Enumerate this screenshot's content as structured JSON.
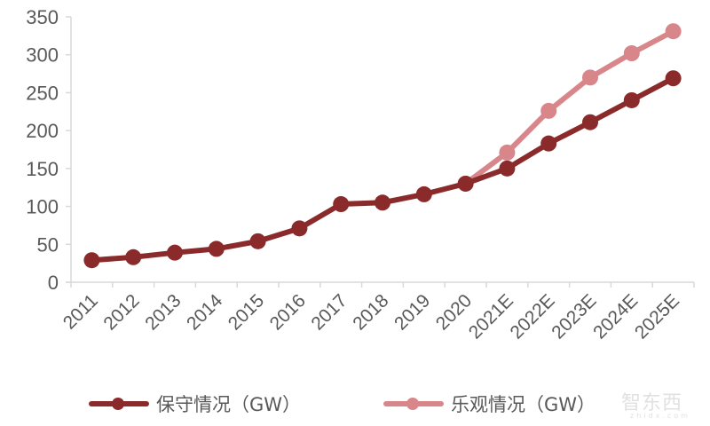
{
  "chart_data": {
    "type": "line",
    "title": "",
    "xlabel": "",
    "ylabel": "",
    "ylim": [
      0,
      350
    ],
    "yticks": [
      0,
      50,
      100,
      150,
      200,
      250,
      300,
      350
    ],
    "grid": false,
    "legend_position": "bottom",
    "categories": [
      "2011",
      "2012",
      "2013",
      "2014",
      "2015",
      "2016",
      "2017",
      "2018",
      "2019",
      "2020",
      "2021E",
      "2022E",
      "2023E",
      "2024E",
      "2025E"
    ],
    "series": [
      {
        "name": "保守情况（GW）",
        "color": "#8b2a2a",
        "values": [
          29,
          33,
          39,
          44,
          54,
          71,
          103,
          105,
          116,
          130,
          150,
          183,
          211,
          240,
          269
        ]
      },
      {
        "name": "乐观情况（GW）",
        "color": "#d8868a",
        "values": [
          null,
          null,
          null,
          null,
          null,
          null,
          null,
          null,
          null,
          130,
          171,
          226,
          270,
          302,
          331
        ]
      }
    ]
  },
  "legend": {
    "conservative_label": "保守情况（GW）",
    "optimistic_label": "乐观情况（GW）"
  },
  "watermark": {
    "text": "智东西",
    "sub": "zhidx.com"
  }
}
